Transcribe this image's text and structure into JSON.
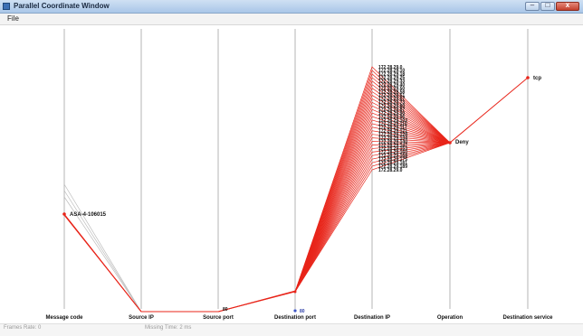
{
  "window": {
    "title": "Parallel Coordinate Window"
  },
  "menu": [
    {
      "label": "File"
    }
  ],
  "statusbar": {
    "left": "Frames Rate: 0",
    "right": "Missing Time: 2 ms"
  },
  "colors": {
    "line": "#e8251a",
    "axis": "#b4b4b4",
    "ghost": "#bdbdbd",
    "text": "#111111"
  },
  "chart_data": {
    "type": "parallel-coordinates",
    "axes": [
      {
        "name": "Message code",
        "values": [
          "ASA-4-106015"
        ]
      },
      {
        "name": "Source IP",
        "values": [
          ""
        ]
      },
      {
        "name": "Source port",
        "values": [
          ""
        ]
      },
      {
        "name": "Destination port",
        "values": [
          "80"
        ]
      },
      {
        "name": "Destination IP",
        "values": [
          "172.28.29.0",
          "172.28.29.10",
          "172.28.29.18",
          "172.28.29.25",
          "172.28.29.33",
          "172.28.29.40",
          "172.28.29.50",
          "172.28.29.58",
          "172.28.29.61",
          "172.28.29.67",
          "172.28.29.73",
          "172.28.29.80",
          "172.28.29.87",
          "172.28.29.90",
          "172.28.29.96",
          "172.28.29.102",
          "172.28.29.110",
          "172.28.29.117",
          "172.28.29.121",
          "172.28.29.128",
          "172.28.29.134",
          "172.28.29.140",
          "172.28.29.147",
          "172.28.29.153",
          "172.28.29.160",
          "172.28.29.168",
          "172.28.29.175",
          "172.28.29.181",
          "172.28.29.189",
          "172.28.29.0"
        ]
      },
      {
        "name": "Operation",
        "values": [
          "Deny"
        ]
      },
      {
        "name": "Destination service",
        "values": [
          "tcp"
        ]
      }
    ],
    "source_port_value": "80"
  }
}
